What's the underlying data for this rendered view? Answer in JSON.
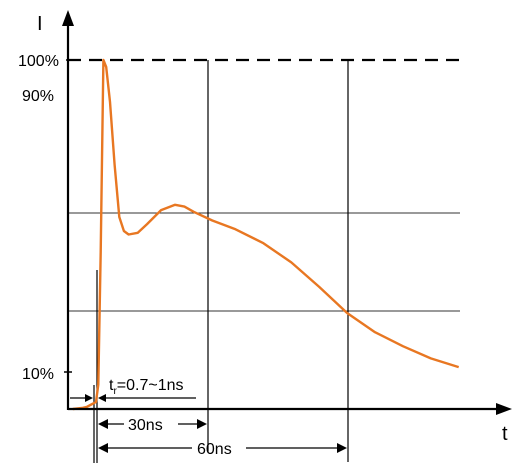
{
  "chart_data": {
    "type": "line",
    "xlabel": "t",
    "ylabel": "I",
    "y_ticks": [
      "100%",
      "90%",
      "10%"
    ],
    "rise_time": {
      "prefix": "t",
      "subscript": "r",
      "text": "=0.7~1ns"
    },
    "intervals": [
      "30ns",
      "60ns"
    ],
    "series": [
      {
        "color": "#e87722",
        "points": [
          [
            -5,
            0
          ],
          [
            -3,
            0.3
          ],
          [
            -2,
            0.6
          ],
          [
            -1,
            1.3
          ],
          [
            0,
            2
          ],
          [
            0.5,
            7
          ],
          [
            1,
            45
          ],
          [
            1.6,
            100
          ],
          [
            2.2,
            98
          ],
          [
            3,
            88
          ],
          [
            4,
            70
          ],
          [
            5,
            55
          ],
          [
            6,
            51
          ],
          [
            7,
            50
          ],
          [
            9,
            50.5
          ],
          [
            11,
            53
          ],
          [
            14,
            57
          ],
          [
            17,
            58.5
          ],
          [
            19,
            58
          ],
          [
            21,
            56.5
          ],
          [
            25,
            54
          ],
          [
            30,
            51.5
          ],
          [
            36,
            47.5
          ],
          [
            42,
            42
          ],
          [
            48,
            35
          ],
          [
            54,
            27.5
          ],
          [
            60,
            22
          ],
          [
            66,
            18
          ],
          [
            72,
            14.5
          ],
          [
            78,
            12
          ]
        ]
      }
    ]
  }
}
